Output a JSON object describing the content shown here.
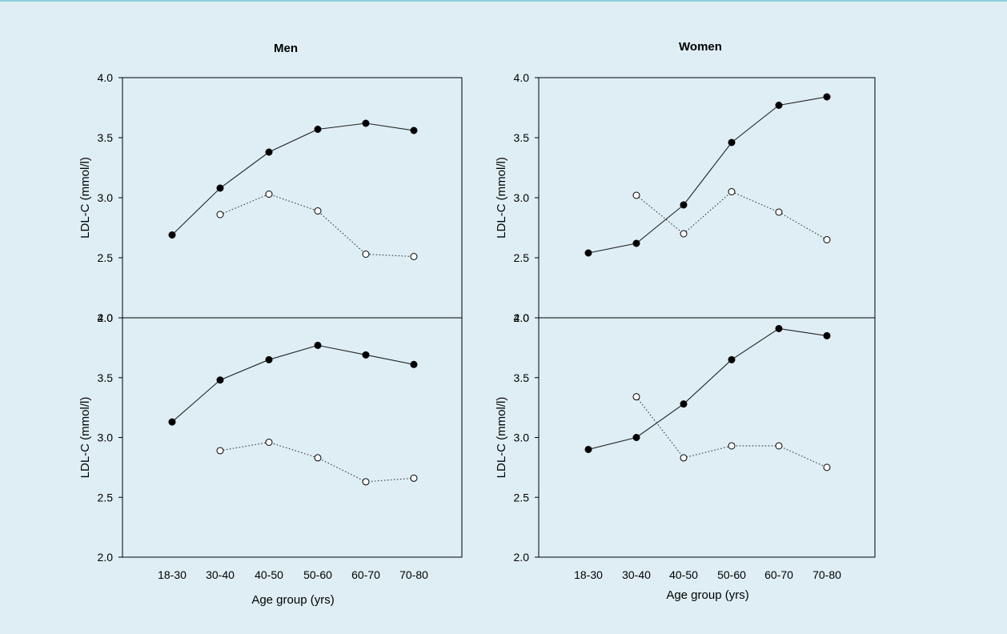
{
  "chart_data": [
    {
      "type": "line",
      "panel": "men-top",
      "title": "Men",
      "xlabel": "",
      "ylabel": "LDL-C (mmol/l)",
      "categories": [
        "18-30",
        "30-40",
        "40-50",
        "50-60",
        "60-70",
        "70-80"
      ],
      "ylim": [
        2.0,
        4.0
      ],
      "yticks": [
        "2.0",
        "2.5",
        "3.0",
        "3.5",
        "4.0"
      ],
      "series": [
        {
          "style": "filled-solid",
          "values": [
            2.69,
            3.08,
            3.38,
            3.57,
            3.62,
            3.56
          ]
        },
        {
          "style": "open-dotted",
          "values": [
            null,
            2.86,
            3.03,
            2.89,
            2.53,
            2.51
          ]
        }
      ]
    },
    {
      "type": "line",
      "panel": "women-top",
      "title": "Women",
      "xlabel": "",
      "ylabel": "LDL-C (mmol/l)",
      "categories": [
        "18-30",
        "30-40",
        "40-50",
        "50-60",
        "60-70",
        "70-80"
      ],
      "ylim": [
        2.0,
        4.0
      ],
      "yticks": [
        "2.0",
        "2.5",
        "3.0",
        "3.5",
        "4.0"
      ],
      "series": [
        {
          "style": "filled-solid",
          "values": [
            2.54,
            2.62,
            2.94,
            3.46,
            3.77,
            3.84
          ]
        },
        {
          "style": "open-dotted",
          "values": [
            null,
            3.02,
            2.7,
            3.05,
            2.88,
            2.65
          ]
        }
      ]
    },
    {
      "type": "line",
      "panel": "men-bottom",
      "title": "",
      "xlabel": "Age group (yrs)",
      "ylabel": "LDL-C (mmol/l)",
      "categories": [
        "18-30",
        "30-40",
        "40-50",
        "50-60",
        "60-70",
        "70-80"
      ],
      "ylim": [
        2.0,
        4.0
      ],
      "yticks": [
        "2.0",
        "2.5",
        "3.0",
        "3.5",
        "4.0"
      ],
      "series": [
        {
          "style": "filled-solid",
          "values": [
            3.13,
            3.48,
            3.65,
            3.77,
            3.69,
            3.61
          ]
        },
        {
          "style": "open-dotted",
          "values": [
            null,
            2.89,
            2.96,
            2.83,
            2.63,
            2.66
          ]
        }
      ]
    },
    {
      "type": "line",
      "panel": "women-bottom",
      "title": "",
      "xlabel": "Age group (yrs)",
      "ylabel": "LDL-C (mmol/l)",
      "categories": [
        "18-30",
        "30-40",
        "40-50",
        "50-60",
        "60-70",
        "70-80"
      ],
      "ylim": [
        2.0,
        4.0
      ],
      "yticks": [
        "2.0",
        "2.5",
        "3.0",
        "3.5",
        "4.0"
      ],
      "series": [
        {
          "style": "filled-solid",
          "values": [
            2.9,
            3.0,
            3.28,
            3.65,
            3.91,
            3.85
          ]
        },
        {
          "style": "open-dotted",
          "values": [
            null,
            3.34,
            2.83,
            2.93,
            2.93,
            2.75
          ]
        }
      ]
    }
  ],
  "colors": {
    "background": "#deeef4",
    "line": "#000000",
    "top_border": "#8fd0dc"
  }
}
